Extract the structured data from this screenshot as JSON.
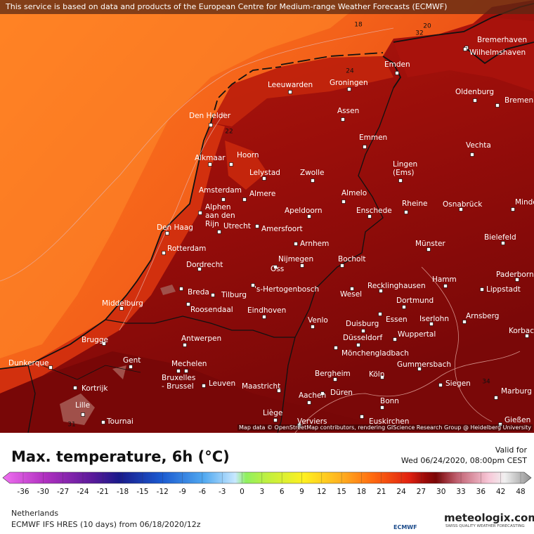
{
  "banner": "This service is based on data and products of the European Centre for Medium-range Weather Forecasts (ECMWF)",
  "attribution": "Map data © OpenStreetMap contributors, rendering GIScience Research Group @ Heidelberg University",
  "contour_labels": [
    "18",
    "20",
    "32",
    "24",
    "22",
    "31",
    "34"
  ],
  "cities": [
    [
      "Emden"
    ],
    [
      "Bremerhaven"
    ],
    [
      "Wilhelmshaven"
    ],
    [
      "Leeuwarden"
    ],
    [
      "Groningen"
    ],
    [
      "Oldenburg"
    ],
    [
      "Bremen"
    ],
    [
      "Assen"
    ],
    [
      "Den Helder"
    ],
    [
      "Emmen"
    ],
    [
      "Vechta"
    ],
    [
      "Alkmaar"
    ],
    [
      "Hoorn"
    ],
    [
      "Lelystad"
    ],
    [
      "Zwolle"
    ],
    [
      "Lingen",
      "(Ems)"
    ],
    [
      "Amsterdam"
    ],
    [
      "Almere"
    ],
    [
      "Almelo"
    ],
    [
      "Rheine"
    ],
    [
      "Osnabrück"
    ],
    [
      "Minden"
    ],
    [
      "Alphen",
      "aan den",
      "Rijn"
    ],
    [
      "Apeldoorn"
    ],
    [
      "Enschede"
    ],
    [
      "Den Haag"
    ],
    [
      "Utrecht"
    ],
    [
      "Amersfoort"
    ],
    [
      "Bielefeld"
    ],
    [
      "Arnhem"
    ],
    [
      "Münster"
    ],
    [
      "Rotterdam"
    ],
    [
      "Nijmegen"
    ],
    [
      "Bocholt"
    ],
    [
      "Dordrecht"
    ],
    [
      "Oss"
    ],
    [
      "Paderborn"
    ],
    [
      "Hamm"
    ],
    [
      "Breda"
    ],
    [
      "'s-Hertogenbosch"
    ],
    [
      "Recklinghausen"
    ],
    [
      "Lippstadt"
    ],
    [
      "Middelburg"
    ],
    [
      "Tilburg"
    ],
    [
      "Wesel"
    ],
    [
      "Roosendaal"
    ],
    [
      "Eindhoven"
    ],
    [
      "Dortmund"
    ],
    [
      "Arnsberg"
    ],
    [
      "Iserlohn"
    ],
    [
      "Venlo"
    ],
    [
      "Essen"
    ],
    [
      "Duisburg"
    ],
    [
      "Korbach"
    ],
    [
      "Wuppertal"
    ],
    [
      "Antwerpen"
    ],
    [
      "Brugge"
    ],
    [
      "Düsseldorf"
    ],
    [
      "Mönchengladbach"
    ],
    [
      "Dunkerque"
    ],
    [
      "Gent"
    ],
    [
      "Mechelen"
    ],
    [
      "Gummersbach"
    ],
    [
      "Bruxelles",
      "- Brussel"
    ],
    [
      "Leuven"
    ],
    [
      "Bergheim"
    ],
    [
      "Köln"
    ],
    [
      "Kortrijk"
    ],
    [
      "Maastricht"
    ],
    [
      "Siegen"
    ],
    [
      "Marburg"
    ],
    [
      "Düren"
    ],
    [
      "Aachen"
    ],
    [
      "Bonn"
    ],
    [
      "Lille"
    ],
    [
      "Tournai"
    ],
    [
      "Liège"
    ],
    [
      "Verviers"
    ],
    [
      "Euskirchen"
    ],
    [
      "Gießen"
    ]
  ],
  "legend": {
    "title": "Max. temperature, 6h (°C)",
    "ticks": [
      -36,
      -30,
      -27,
      -24,
      -21,
      -18,
      -15,
      -12,
      -9,
      -6,
      -3,
      0,
      3,
      6,
      9,
      12,
      15,
      18,
      21,
      24,
      27,
      30,
      33,
      36,
      42,
      48
    ]
  },
  "valid": {
    "label": "Valid for",
    "time": "Wed 06/24/2020, 08:00pm CEST"
  },
  "footer": {
    "region": "Netherlands",
    "model": "ECMWF IFS HRES (10 days) from 06/18/2020/12z"
  },
  "logos": {
    "ecmwf": "ECMWF",
    "brand": "meteologix.com",
    "tagline": "SWISS QUALITY WEATHER FORECASTING"
  }
}
